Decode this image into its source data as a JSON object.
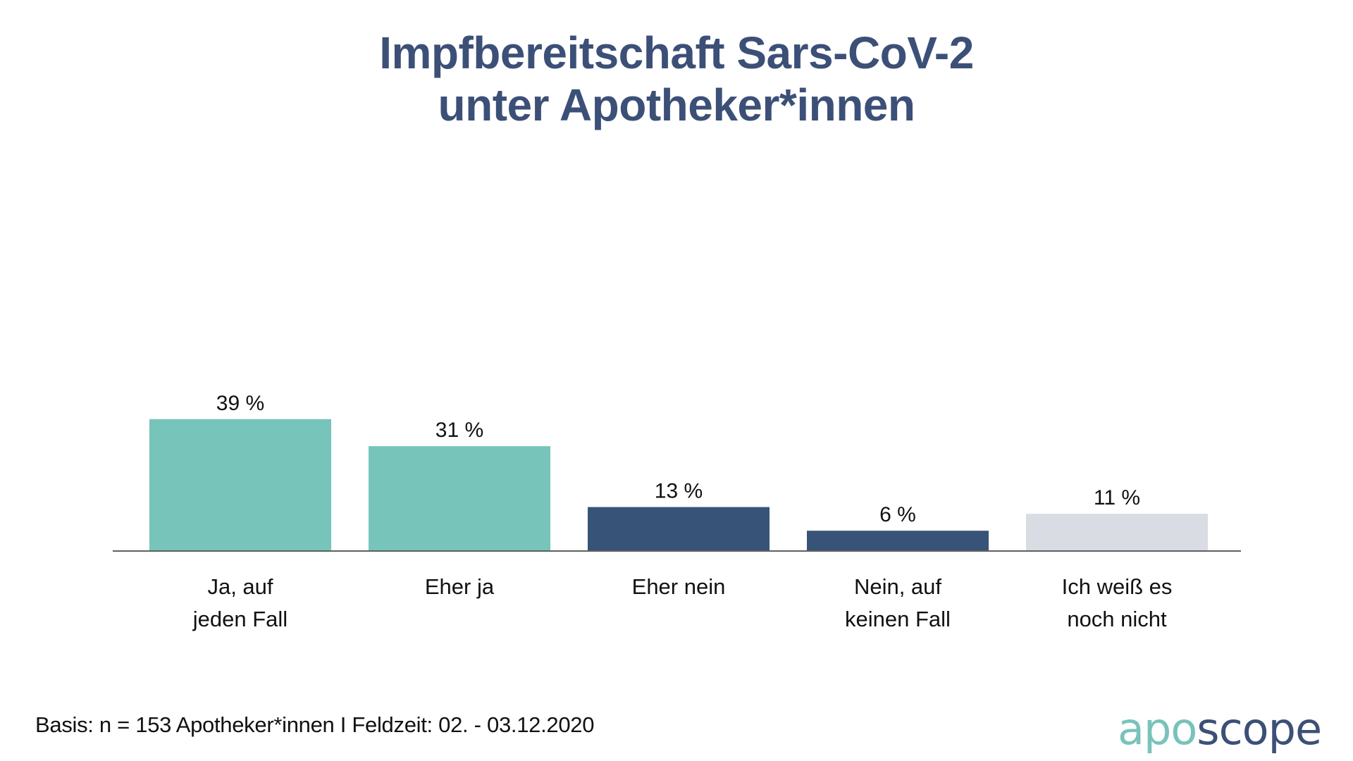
{
  "title": {
    "line1": "Impfbereitschaft Sars-CoV-2",
    "line2": "unter Apotheker*innen"
  },
  "chart_data": {
    "type": "bar",
    "title": "Impfbereitschaft Sars-CoV-2 unter Apotheker*innen",
    "xlabel": "",
    "ylabel": "",
    "ylim": [
      0,
      100
    ],
    "grid": false,
    "legend": "none",
    "unit": "%",
    "categories": [
      [
        "Ja, auf",
        "jeden Fall"
      ],
      [
        "Eher ja"
      ],
      [
        "Eher nein"
      ],
      [
        "Nein, auf",
        "keinen Fall"
      ],
      [
        "Ich weiß es",
        "noch nicht"
      ]
    ],
    "values": [
      39,
      31,
      13,
      6,
      11
    ],
    "value_labels": [
      "39 %",
      "31 %",
      "13 %",
      "6 %",
      "11 %"
    ],
    "colors": [
      "#77c4bb",
      "#77c4bb",
      "#375378",
      "#375378",
      "#d9dce3"
    ]
  },
  "footer": {
    "basis": "Basis: n = 153 Apotheker*innen I Feldzeit: 02. - 03.12.2020"
  },
  "logo": {
    "part1": "apo",
    "part2": "scope"
  },
  "colors": {
    "title": "#3c5077",
    "axis": "#5f5f5f"
  }
}
